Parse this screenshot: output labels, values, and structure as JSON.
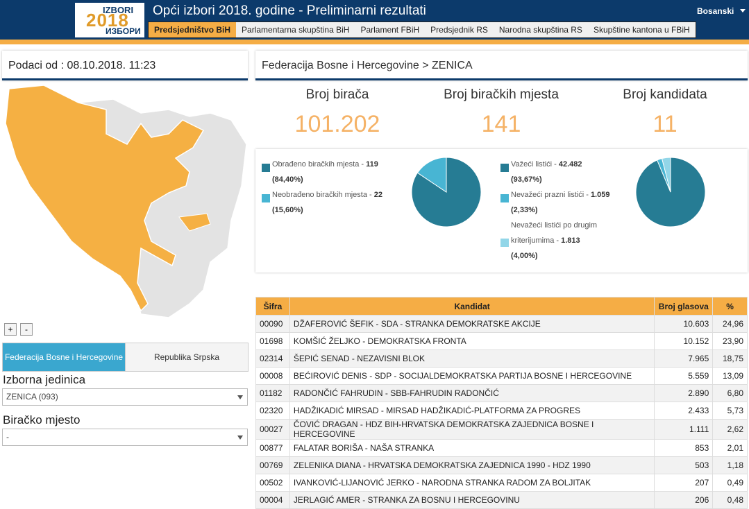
{
  "header": {
    "logo_top": "IZBORI",
    "logo_year": "2018",
    "logo_bottom": "ИЗБОРИ",
    "title": "Opći izbori 2018. godine - Preliminarni rezultati",
    "language": "Bosanski"
  },
  "nav": [
    "Predsjedništvo BiH",
    "Parlamentarna skupština BiH",
    "Parlament FBiH",
    "Predsjednik RS",
    "Narodna skupština RS",
    "Skupštine kantona u FBiH"
  ],
  "left": {
    "updated": "Podaci od : 08.10.2018. 11:23",
    "zoom_in": "+",
    "zoom_out": "-",
    "tabs": [
      "Federacija Bosne i Hercegovine",
      "Republika Srpska"
    ],
    "constituency_label": "Izborna jedinica",
    "constituency_value": "ZENICA (093)",
    "station_label": "Biračko mjesto",
    "station_value": "-"
  },
  "breadcrumb": "Federacija Bosne i Hercegovine > ZENICA",
  "stats": [
    {
      "label": "Broj birača",
      "value": "101.202"
    },
    {
      "label": "Broj biračkih mjesta",
      "value": "141"
    },
    {
      "label": "Broj kandidata",
      "value": "11"
    }
  ],
  "pies": [
    {
      "type": "pie",
      "items": [
        {
          "name": "Obrađeno biračkih mjesta -",
          "count": "119",
          "value": 84.4,
          "label": "(84,40%)",
          "color": "#267c94"
        },
        {
          "name": "Neobrađeno biračkih mjesta -",
          "count": "22",
          "value": 15.6,
          "label": "(15,60%)",
          "color": "#48b5d3"
        }
      ]
    },
    {
      "type": "pie",
      "items": [
        {
          "name": "Važeći listići -",
          "count": "42.482",
          "value": 93.67,
          "label": "(93,67%)",
          "color": "#267c94"
        },
        {
          "name": "Nevažeći prazni listići -",
          "count": "1.059",
          "value": 2.33,
          "label": "(2,33%)",
          "color": "#48b5d3"
        },
        {
          "name": "Nevažeći listići po drugim kriterijumima -",
          "count": "1.813",
          "value": 4.0,
          "label": "(4,00%)",
          "color": "#92d6e8"
        }
      ]
    }
  ],
  "table": {
    "columns": [
      "Šifra",
      "Kandidat",
      "Broj glasova",
      "%"
    ],
    "rows": [
      [
        "00090",
        "DŽAFEROVIĆ ŠEFIK - SDA - STRANKA DEMOKRATSKE AKCIJE",
        "10.603",
        "24,96"
      ],
      [
        "01698",
        "KOMŠIĆ ŽELJKO - DEMOKRATSKA FRONTA",
        "10.152",
        "23,90"
      ],
      [
        "02314",
        "ŠEPIĆ SENAD - NEZAVISNI BLOK",
        "7.965",
        "18,75"
      ],
      [
        "00008",
        "BEĆIROVIĆ DENIS - SDP - SOCIJALDEMOKRATSKA PARTIJA BOSNE I HERCEGOVINE",
        "5.559",
        "13,09"
      ],
      [
        "01182",
        "RADONČIĆ FAHRUDIN - SBB-FAHRUDIN RADONČIĆ",
        "2.890",
        "6,80"
      ],
      [
        "02320",
        "HADŽIKADIĆ MIRSAD - MIRSAD HADŽIKADIĆ-PLATFORMA ZA PROGRES",
        "2.433",
        "5,73"
      ],
      [
        "00027",
        "ČOVIĆ DRAGAN - HDZ BIH-HRVATSKA DEMOKRATSKA ZAJEDNICA BOSNE I HERCEGOVINE",
        "1.111",
        "2,62"
      ],
      [
        "00877",
        "FALATAR BORIŠA - NAŠA STRANKA",
        "853",
        "2,01"
      ],
      [
        "00769",
        "ZELENIKA DIANA - HRVATSKA DEMOKRATSKA ZAJEDNICA 1990 - HDZ 1990",
        "503",
        "1,18"
      ],
      [
        "00502",
        "IVANKOVIĆ-LIJANOVIĆ JERKO - NARODNA STRANKA RADOM ZA BOLJITAK",
        "207",
        "0,49"
      ],
      [
        "00004",
        "JERLAGIĆ AMER - STRANKA ZA BOSNU I HERCEGOVINU",
        "206",
        "0,48"
      ]
    ]
  }
}
